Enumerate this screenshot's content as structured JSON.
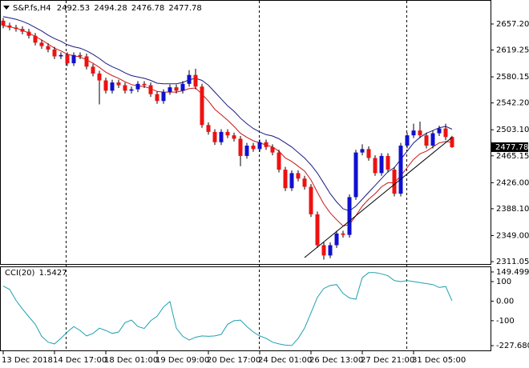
{
  "chart_data": {
    "type": "candlestick",
    "title": "S&P.fs,H4",
    "up_color": "#1010d0",
    "down_color": "#ee1111",
    "wick_color": "#000000",
    "candles": [
      [
        2662,
        2666,
        2651,
        2655
      ],
      [
        2655,
        2659,
        2648,
        2652
      ],
      [
        2652,
        2656,
        2646,
        2650
      ],
      [
        2650,
        2654,
        2642,
        2646
      ],
      [
        2646,
        2650,
        2636,
        2640
      ],
      [
        2640,
        2644,
        2626,
        2630
      ],
      [
        2630,
        2634,
        2621,
        2625
      ],
      [
        2625,
        2629,
        2616,
        2620
      ],
      [
        2620,
        2624,
        2606,
        2610
      ],
      [
        2610,
        2616,
        2606,
        2612
      ],
      [
        2612,
        2616,
        2596,
        2600
      ],
      [
        2600,
        2616,
        2596,
        2612
      ],
      [
        2612,
        2616,
        2606,
        2610
      ],
      [
        2610,
        2614,
        2591,
        2595
      ],
      [
        2595,
        2599,
        2581,
        2585
      ],
      [
        2585,
        2589,
        2540,
        2575
      ],
      [
        2575,
        2579,
        2556,
        2560
      ],
      [
        2560,
        2576,
        2556,
        2572
      ],
      [
        2572,
        2576,
        2564,
        2568
      ],
      [
        2568,
        2572,
        2556,
        2560
      ],
      [
        2560,
        2566,
        2556,
        2562
      ],
      [
        2562,
        2574,
        2558,
        2570
      ],
      [
        2570,
        2574,
        2564,
        2568
      ],
      [
        2568,
        2572,
        2551,
        2555
      ],
      [
        2555,
        2559,
        2541,
        2545
      ],
      [
        2545,
        2562,
        2541,
        2558
      ],
      [
        2558,
        2569,
        2554,
        2565
      ],
      [
        2565,
        2569,
        2556,
        2560
      ],
      [
        2560,
        2574,
        2556,
        2570
      ],
      [
        2570,
        2590,
        2566,
        2583
      ],
      [
        2583,
        2592,
        2562,
        2566
      ],
      [
        2566,
        2570,
        2506,
        2510
      ],
      [
        2510,
        2514,
        2496,
        2500
      ],
      [
        2500,
        2504,
        2481,
        2485
      ],
      [
        2485,
        2504,
        2481,
        2500
      ],
      [
        2500,
        2504,
        2491,
        2495
      ],
      [
        2495,
        2499,
        2486,
        2490
      ],
      [
        2490,
        2494,
        2450,
        2465
      ],
      [
        2465,
        2484,
        2461,
        2480
      ],
      [
        2480,
        2484,
        2471,
        2475
      ],
      [
        2475,
        2489,
        2471,
        2485
      ],
      [
        2485,
        2489,
        2474,
        2478
      ],
      [
        2478,
        2482,
        2466,
        2470
      ],
      [
        2470,
        2474,
        2441,
        2445
      ],
      [
        2445,
        2449,
        2414,
        2418
      ],
      [
        2418,
        2444,
        2414,
        2440
      ],
      [
        2440,
        2444,
        2428,
        2432
      ],
      [
        2432,
        2436,
        2416,
        2420
      ],
      [
        2420,
        2424,
        2376,
        2380
      ],
      [
        2380,
        2384,
        2331,
        2335
      ],
      [
        2335,
        2339,
        2314,
        2320
      ],
      [
        2320,
        2339,
        2316,
        2335
      ],
      [
        2335,
        2356,
        2331,
        2352
      ],
      [
        2352,
        2356,
        2346,
        2350
      ],
      [
        2350,
        2409,
        2346,
        2405
      ],
      [
        2405,
        2474,
        2401,
        2470
      ],
      [
        2470,
        2482,
        2466,
        2475
      ],
      [
        2475,
        2479,
        2458,
        2462
      ],
      [
        2462,
        2466,
        2436,
        2440
      ],
      [
        2440,
        2469,
        2436,
        2465
      ],
      [
        2465,
        2469,
        2441,
        2445
      ],
      [
        2445,
        2449,
        2406,
        2410
      ],
      [
        2410,
        2484,
        2406,
        2480
      ],
      [
        2480,
        2499,
        2476,
        2495
      ],
      [
        2495,
        2512,
        2491,
        2502
      ],
      [
        2502,
        2515,
        2491,
        2495
      ],
      [
        2495,
        2499,
        2476,
        2480
      ],
      [
        2480,
        2502,
        2476,
        2498
      ],
      [
        2498,
        2509,
        2494,
        2505
      ],
      [
        2505,
        2512,
        2488,
        2492.53
      ],
      [
        2492.53,
        2494.28,
        2476.78,
        2477.78
      ]
    ],
    "series": [
      {
        "color": "#1a1a80",
        "values": [
          2668,
          2666,
          2664,
          2661,
          2657,
          2652,
          2647,
          2641,
          2636,
          2632,
          2627,
          2624,
          2622,
          2618,
          2613,
          2607,
          2600,
          2595,
          2591,
          2586,
          2582,
          2580,
          2578,
          2575,
          2571,
          2570,
          2570,
          2570,
          2572,
          2576,
          2578,
          2575,
          2568,
          2558,
          2548,
          2538,
          2530,
          2520,
          2512,
          2505,
          2500,
          2496,
          2494,
          2490,
          2484,
          2478,
          2470,
          2462,
          2452,
          2440,
          2425,
          2410,
          2398,
          2388,
          2385,
          2392,
          2402,
          2412,
          2422,
          2432,
          2442,
          2448,
          2460,
          2472,
          2484,
          2492,
          2498,
          2502,
          2506,
          2508,
          2504
        ]
      },
      {
        "color": "#c81818",
        "values": [
          2655,
          2653,
          2651,
          2648,
          2644,
          2639,
          2634,
          2628,
          2622,
          2618,
          2613,
          2611,
          2609,
          2605,
          2600,
          2594,
          2587,
          2582,
          2578,
          2573,
          2569,
          2567,
          2566,
          2563,
          2559,
          2558,
          2558,
          2558,
          2560,
          2563,
          2564,
          2555,
          2545,
          2533,
          2525,
          2517,
          2508,
          2498,
          2492,
          2487,
          2484,
          2481,
          2478,
          2472,
          2462,
          2457,
          2450,
          2443,
          2430,
          2412,
          2395,
          2382,
          2372,
          2363,
          2365,
          2378,
          2392,
          2402,
          2410,
          2420,
          2426,
          2426,
          2436,
          2448,
          2460,
          2468,
          2472,
          2478,
          2484,
          2486,
          2485
        ]
      }
    ],
    "trendline": {
      "color": "#000000",
      "points": [
        [
          47,
          2317
        ],
        [
          70,
          2492
        ]
      ]
    },
    "xticks": [
      {
        "value": 0,
        "label": "13 Dec 2018"
      },
      {
        "value": 8,
        "label": "14 Dec 17:00"
      },
      {
        "value": 16,
        "label": "18 Dec 01:00"
      },
      {
        "value": 24,
        "label": "19 Dec 09:00"
      },
      {
        "value": 32,
        "label": "20 Dec 17:00"
      },
      {
        "value": 40,
        "label": "24 Dec 01:00"
      },
      {
        "value": 48,
        "label": "26 Dec 13:00"
      },
      {
        "value": 56,
        "label": "27 Dec 21:00"
      },
      {
        "value": 64,
        "label": "31 Dec 05:00"
      }
    ],
    "ylim": [
      2307.6,
      2689.8
    ],
    "yticks": [
      {
        "value": 2657.2,
        "label": "2657.20"
      },
      2619.25,
      2580.15,
      {
        "value": 2542.2,
        "label": "2542.20"
      },
      {
        "value": 2503.1,
        "label": "2503.10"
      },
      2465.15,
      {
        "value": 2426,
        "label": "2426.00"
      },
      {
        "value": 2388.1,
        "label": "2388.10"
      },
      {
        "value": 2349,
        "label": "2349.00"
      },
      2311.05
    ],
    "cci": {
      "title": "CCI(20)",
      "color": "#20a0b0",
      "values": [
        77,
        60,
        4,
        -40,
        -80,
        -118,
        -180,
        -210,
        -219,
        -190,
        -158,
        -130,
        -150,
        -178,
        -165,
        -138,
        -150,
        -165,
        -158,
        -110,
        -97,
        -130,
        -140,
        -100,
        -77,
        -30,
        -2,
        -138,
        -180,
        -199,
        -185,
        -178,
        -180,
        -178,
        -170,
        -118,
        -100,
        -97,
        -130,
        -158,
        -178,
        -190,
        -210,
        -219,
        -225,
        -227,
        -190,
        -138,
        -60,
        20,
        65,
        80,
        85,
        40,
        16,
        10,
        120,
        146,
        146,
        140,
        130,
        105,
        100,
        105,
        100,
        95,
        90,
        85,
        70,
        75,
        1.5427
      ],
      "ylim": [
        -252,
        173.8
      ],
      "yticks": [
        149.499,
        100,
        {
          "value": 0,
          "label": "0.00"
        },
        -100,
        -227.6808
      ]
    }
  }
}
